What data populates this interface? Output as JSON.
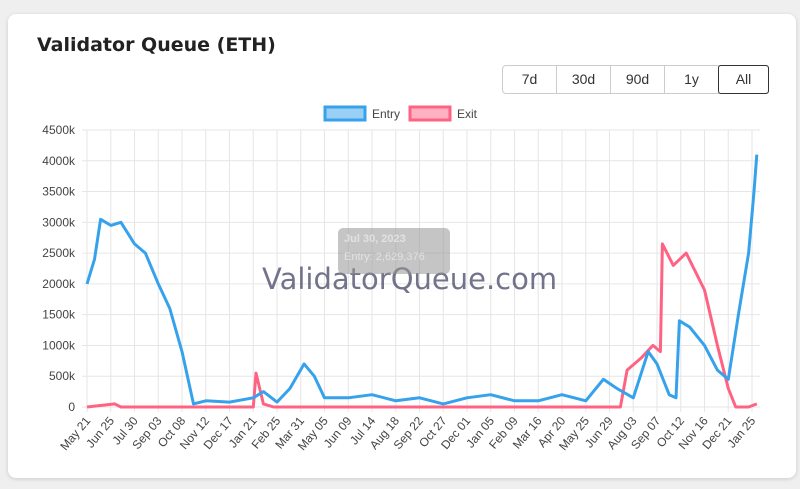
{
  "title": "Validator Queue (ETH)",
  "range_buttons": [
    "7d",
    "30d",
    "90d",
    "1y",
    "All"
  ],
  "selected_range": "All",
  "watermark": "ValidatorQueue.com",
  "tooltip": {
    "date": "Jul 30, 2023",
    "label": "Entry: 2,629,376"
  },
  "chart_data": {
    "type": "line",
    "legend": "top",
    "grid": true,
    "ylim": [
      0,
      4500000
    ],
    "yticks": [
      "0",
      "500k",
      "1000k",
      "1500k",
      "2000k",
      "2500k",
      "3000k",
      "3500k",
      "4000k",
      "4500k"
    ],
    "xticks": [
      "May 21",
      "Jun 25",
      "Jul 30",
      "Sep 03",
      "Oct 08",
      "Nov 12",
      "Dec 17",
      "Jan 21",
      "Feb 25",
      "Mar 31",
      "May 05",
      "Jun 09",
      "Jul 14",
      "Aug 18",
      "Sep 22",
      "Oct 27",
      "Dec 01",
      "Jan 05",
      "Feb 09",
      "Mar 16",
      "Apr 20",
      "May 25",
      "Jun 29",
      "Aug 03",
      "Sep 07",
      "Oct 12",
      "Nov 16",
      "Dec 21",
      "Jan 25"
    ],
    "xtick_start": "2023-05-21",
    "xtick_step_days": 35,
    "series": [
      {
        "name": "Entry",
        "color": "#36a2eb",
        "fill": "#9ad0f5",
        "points": [
          [
            "2023-05-21",
            2000000
          ],
          [
            "2023-06-01",
            2400000
          ],
          [
            "2023-06-10",
            3050000
          ],
          [
            "2023-06-25",
            2950000
          ],
          [
            "2023-07-10",
            3000000
          ],
          [
            "2023-07-30",
            2650000
          ],
          [
            "2023-08-15",
            2500000
          ],
          [
            "2023-09-03",
            2000000
          ],
          [
            "2023-09-20",
            1600000
          ],
          [
            "2023-10-08",
            900000
          ],
          [
            "2023-10-25",
            50000
          ],
          [
            "2023-11-12",
            100000
          ],
          [
            "2023-12-17",
            80000
          ],
          [
            "2024-01-21",
            150000
          ],
          [
            "2024-02-05",
            250000
          ],
          [
            "2024-02-25",
            80000
          ],
          [
            "2024-03-15",
            300000
          ],
          [
            "2024-04-05",
            700000
          ],
          [
            "2024-04-20",
            500000
          ],
          [
            "2024-05-05",
            150000
          ],
          [
            "2024-06-09",
            150000
          ],
          [
            "2024-07-14",
            200000
          ],
          [
            "2024-08-18",
            100000
          ],
          [
            "2024-09-22",
            150000
          ],
          [
            "2024-10-27",
            50000
          ],
          [
            "2024-12-01",
            150000
          ],
          [
            "2025-01-05",
            200000
          ],
          [
            "2025-02-09",
            100000
          ],
          [
            "2025-03-16",
            100000
          ],
          [
            "2025-04-20",
            200000
          ],
          [
            "2025-05-25",
            100000
          ],
          [
            "2025-06-20",
            450000
          ],
          [
            "2025-07-10",
            300000
          ],
          [
            "2025-08-03",
            150000
          ],
          [
            "2025-08-25",
            900000
          ],
          [
            "2025-09-07",
            700000
          ],
          [
            "2025-09-25",
            200000
          ],
          [
            "2025-10-05",
            150000
          ],
          [
            "2025-10-10",
            1400000
          ],
          [
            "2025-10-25",
            1300000
          ],
          [
            "2025-11-16",
            1000000
          ],
          [
            "2025-12-05",
            600000
          ],
          [
            "2025-12-21",
            450000
          ],
          [
            "2026-01-05",
            1500000
          ],
          [
            "2026-01-20",
            2500000
          ],
          [
            "2026-01-28",
            3500000
          ],
          [
            "2026-02-01",
            4100000
          ]
        ]
      },
      {
        "name": "Exit",
        "color": "#ff6384",
        "fill": "#ffb1c1",
        "points": [
          [
            "2023-05-21",
            0
          ],
          [
            "2023-07-01",
            50000
          ],
          [
            "2023-07-10",
            0
          ],
          [
            "2024-01-21",
            0
          ],
          [
            "2024-01-25",
            550000
          ],
          [
            "2024-02-05",
            50000
          ],
          [
            "2024-02-20",
            0
          ],
          [
            "2025-07-15",
            0
          ],
          [
            "2025-07-25",
            600000
          ],
          [
            "2025-08-15",
            800000
          ],
          [
            "2025-09-01",
            1000000
          ],
          [
            "2025-09-12",
            900000
          ],
          [
            "2025-09-15",
            2650000
          ],
          [
            "2025-10-01",
            2300000
          ],
          [
            "2025-10-20",
            2500000
          ],
          [
            "2025-11-16",
            1900000
          ],
          [
            "2025-12-05",
            1000000
          ],
          [
            "2025-12-21",
            300000
          ],
          [
            "2026-01-01",
            0
          ],
          [
            "2026-01-20",
            0
          ],
          [
            "2026-02-01",
            50000
          ]
        ]
      }
    ]
  }
}
